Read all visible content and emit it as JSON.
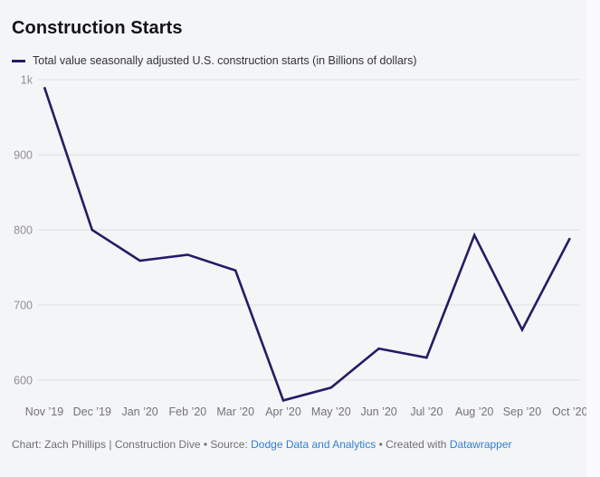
{
  "header": {
    "title": "Construction Starts"
  },
  "legend": {
    "label": "Total value seasonally adjusted U.S. construction starts (in Billions of dollars)"
  },
  "chart_data": {
    "type": "line",
    "title": "Construction Starts",
    "categories": [
      "Nov ’19",
      "Dec ’19",
      "Jan ’20",
      "Feb ’20",
      "Mar ’20",
      "Apr ’20",
      "May ’20",
      "Jun ’20",
      "Jul ’20",
      "Aug ’20",
      "Sep ’20",
      "Oct ’20"
    ],
    "series": [
      {
        "name": "Total value seasonally adjusted U.S. construction starts (in Billions of dollars)",
        "values": [
          990,
          800,
          759,
          767,
          746,
          573,
          590,
          642,
          630,
          793,
          667,
          789
        ]
      }
    ],
    "xlabel": "",
    "ylabel": "",
    "ylim": [
      560,
      1010
    ],
    "yticks": [
      {
        "value": 1000,
        "label": "1k"
      },
      {
        "value": 900,
        "label": "900"
      },
      {
        "value": 800,
        "label": "800"
      },
      {
        "value": 700,
        "label": "700"
      },
      {
        "value": 600,
        "label": "600"
      }
    ],
    "grid": true,
    "legend_position": "top-left",
    "line_color": "#221d66"
  },
  "footer": {
    "byline": "Chart: Zach Phillips | Construction Dive",
    "separator": "•",
    "source_prefix": "Source:",
    "source_link": "Dodge Data and Analytics",
    "created_prefix": "Created with",
    "created_link": "Datawrapper"
  },
  "colors": {
    "background": "#f4f5f7",
    "line": "#221d66",
    "gridline": "#dededf",
    "axis_text": "#8f8f93",
    "link": "#3180d3",
    "title_text": "#141417"
  }
}
